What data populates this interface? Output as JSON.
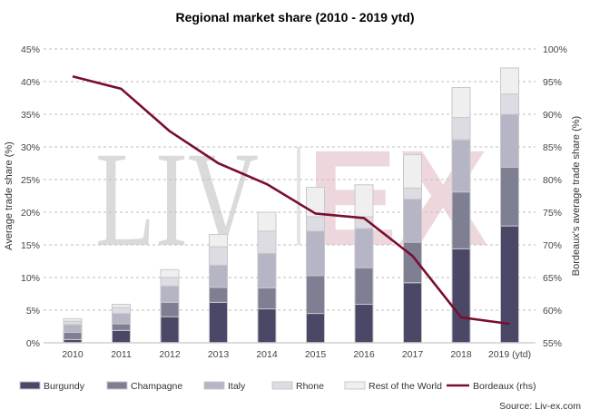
{
  "chart_data": {
    "type": "bar",
    "stacked": true,
    "title": "Regional market share (2010 - 2019 ytd)",
    "categories": [
      "2010",
      "2011",
      "2012",
      "2013",
      "2014",
      "2015",
      "2016",
      "2017",
      "2018",
      "2019 (ytd)"
    ],
    "ylabel": "Average trade share (%)",
    "ylim": [
      0,
      45
    ],
    "yticks": [
      "0%",
      "5%",
      "10%",
      "15%",
      "20%",
      "25%",
      "30%",
      "35%",
      "40%",
      "45%"
    ],
    "y2label": "Bordeaux's average trade share (%)",
    "y2lim": [
      55,
      100
    ],
    "y2ticks": [
      "55%",
      "60%",
      "65%",
      "70%",
      "75%",
      "80%",
      "85%",
      "90%",
      "95%",
      "100%"
    ],
    "grid": true,
    "legend": "bottom",
    "series": [
      {
        "name": "Burgundy",
        "type": "bar",
        "color": "#4a4866",
        "values": [
          0.5,
          1.9,
          4.0,
          6.2,
          5.2,
          4.5,
          5.9,
          9.2,
          14.4,
          17.9
        ]
      },
      {
        "name": "Champagne",
        "type": "bar",
        "color": "#7f7f94",
        "values": [
          1.1,
          1.0,
          2.2,
          2.3,
          3.2,
          5.8,
          5.6,
          6.2,
          8.7,
          9.0
        ]
      },
      {
        "name": "Italy",
        "type": "bar",
        "color": "#b5b5c5",
        "values": [
          1.2,
          1.6,
          2.5,
          3.4,
          5.3,
          6.8,
          6.0,
          6.6,
          8.0,
          8.1
        ]
      },
      {
        "name": "Rhone",
        "type": "bar",
        "color": "#dcdce2",
        "values": [
          0.5,
          0.9,
          1.3,
          2.8,
          3.4,
          2.2,
          1.8,
          1.7,
          3.4,
          3.1
        ]
      },
      {
        "name": "Rest of the World",
        "type": "bar",
        "color": "#efefef",
        "values": [
          0.4,
          0.5,
          1.2,
          1.9,
          2.9,
          4.5,
          4.9,
          5.1,
          4.6,
          4.0
        ]
      },
      {
        "name": "Bordeaux (rhs)",
        "type": "line",
        "axis": "right",
        "color": "#7a0d2e",
        "values": [
          95.8,
          93.9,
          87.4,
          82.5,
          79.3,
          74.8,
          74.1,
          68.3,
          58.9,
          57.9
        ]
      }
    ],
    "source": "Source: Liv-ex.com",
    "watermark": "LIV-EX"
  }
}
